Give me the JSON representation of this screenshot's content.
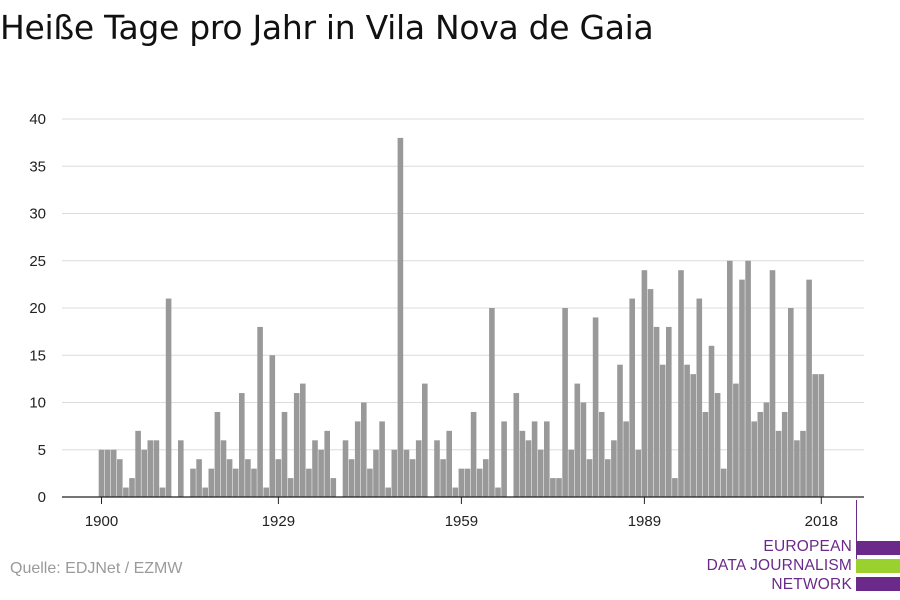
{
  "title": "Heiße Tage pro Jahr in Vila Nova de Gaia",
  "source": "Quelle: EDJNet / EZMW",
  "logo": {
    "lines": [
      "EUROPEAN",
      "DATA JOURNALISM",
      "NETWORK"
    ],
    "colors": {
      "purple": "#6b2a8a",
      "green": "#9bd12e"
    }
  },
  "chart_data": {
    "type": "bar",
    "title": "Heiße Tage pro Jahr in Vila Nova de Gaia",
    "xlabel": "",
    "ylabel": "",
    "bar_color": "#999999",
    "grid": true,
    "ylim": [
      0,
      40
    ],
    "y_ticks": [
      0,
      5,
      10,
      15,
      20,
      25,
      30,
      35,
      40
    ],
    "x_ticks": [
      1900,
      1929,
      1959,
      1989,
      2018
    ],
    "x": [
      1900,
      1901,
      1902,
      1903,
      1904,
      1905,
      1906,
      1907,
      1908,
      1909,
      1910,
      1911,
      1912,
      1913,
      1914,
      1915,
      1916,
      1917,
      1918,
      1919,
      1920,
      1921,
      1922,
      1923,
      1924,
      1925,
      1926,
      1927,
      1928,
      1929,
      1930,
      1931,
      1932,
      1933,
      1934,
      1935,
      1936,
      1937,
      1938,
      1939,
      1940,
      1941,
      1942,
      1943,
      1944,
      1945,
      1946,
      1947,
      1948,
      1949,
      1950,
      1951,
      1952,
      1953,
      1954,
      1955,
      1956,
      1957,
      1958,
      1959,
      1960,
      1961,
      1962,
      1963,
      1964,
      1965,
      1966,
      1967,
      1968,
      1969,
      1970,
      1971,
      1972,
      1973,
      1974,
      1975,
      1976,
      1977,
      1978,
      1979,
      1980,
      1981,
      1982,
      1983,
      1984,
      1985,
      1986,
      1987,
      1988,
      1989,
      1990,
      1991,
      1992,
      1993,
      1994,
      1995,
      1996,
      1997,
      1998,
      1999,
      2000,
      2001,
      2002,
      2003,
      2004,
      2005,
      2006,
      2007,
      2008,
      2009,
      2010,
      2011,
      2012,
      2013,
      2014,
      2015,
      2016,
      2017,
      2018,
      2019
    ],
    "values": [
      5,
      5,
      5,
      4,
      1,
      2,
      7,
      5,
      6,
      6,
      1,
      21,
      0,
      6,
      0,
      3,
      4,
      1,
      3,
      9,
      6,
      4,
      3,
      11,
      4,
      3,
      18,
      1,
      15,
      4,
      9,
      2,
      11,
      12,
      3,
      6,
      5,
      7,
      2,
      0,
      6,
      4,
      8,
      10,
      3,
      5,
      8,
      1,
      5,
      38,
      5,
      4,
      6,
      12,
      0,
      6,
      4,
      7,
      1,
      3,
      3,
      9,
      3,
      4,
      20,
      1,
      8,
      0,
      11,
      7,
      6,
      8,
      5,
      8,
      2,
      2,
      20,
      5,
      12,
      10,
      4,
      19,
      9,
      4,
      6,
      14,
      8,
      21,
      5,
      24,
      22,
      18,
      14,
      18,
      2,
      24,
      14,
      13,
      21,
      9,
      16,
      11,
      3,
      25,
      12,
      23,
      25,
      8,
      9,
      10,
      24,
      7,
      9,
      20,
      6,
      7,
      23,
      13,
      13,
      0
    ]
  }
}
